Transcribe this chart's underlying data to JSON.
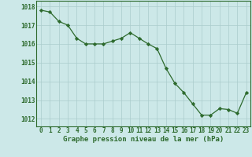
{
  "x": [
    0,
    1,
    2,
    3,
    4,
    5,
    6,
    7,
    8,
    9,
    10,
    11,
    12,
    13,
    14,
    15,
    16,
    17,
    18,
    19,
    20,
    21,
    22,
    23
  ],
  "y": [
    1017.8,
    1017.7,
    1017.2,
    1017.0,
    1016.3,
    1016.0,
    1016.0,
    1016.0,
    1016.15,
    1016.3,
    1016.6,
    1016.3,
    1016.0,
    1015.75,
    1014.7,
    1013.9,
    1013.4,
    1012.8,
    1012.2,
    1012.2,
    1012.55,
    1012.5,
    1012.3,
    1013.4
  ],
  "line_color": "#2d6a2d",
  "marker_color": "#2d6a2d",
  "bg_color": "#cce8e8",
  "grid_color": "#aacccc",
  "ylabel_ticks": [
    1012,
    1013,
    1014,
    1015,
    1016,
    1017,
    1018
  ],
  "ylim": [
    1011.6,
    1018.3
  ],
  "xlim": [
    -0.5,
    23.5
  ],
  "xlabel": "Graphe pression niveau de la mer (hPa)",
  "xlabel_color": "#2d6a2d",
  "tick_color": "#2d6a2d",
  "axis_color": "#2d6a2d",
  "tick_fontsize": 5.5,
  "xlabel_fontsize": 6.5
}
